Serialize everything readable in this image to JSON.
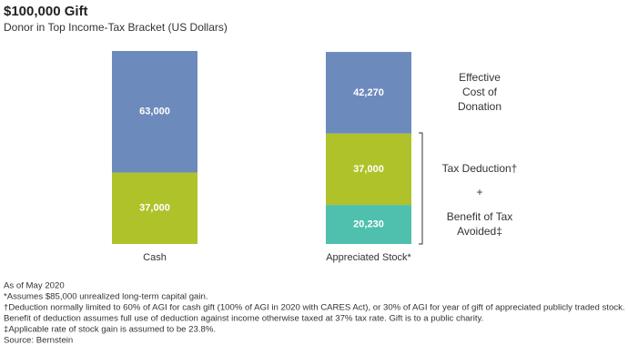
{
  "chart_data": {
    "type": "stacked-bar",
    "title": "$100,000 Gift",
    "subtitle": "Donor in Top Income-Tax Bracket (US Dollars)",
    "categories": [
      "Cash",
      "Appreciated Stock*"
    ],
    "ylim": [
      0,
      100000
    ],
    "series": [
      {
        "name": "Benefit of Tax Avoided‡",
        "color": "#4fbfae",
        "values": [
          null,
          20230
        ],
        "value_labels": [
          null,
          "20,230"
        ]
      },
      {
        "name": "Tax Deduction†",
        "color": "#afc22a",
        "values": [
          37000,
          37000
        ],
        "value_labels": [
          "37,000",
          "37,000"
        ]
      },
      {
        "name": "Effective Cost of Donation",
        "color": "#6d8abd",
        "values": [
          63000,
          42270
        ],
        "value_labels": [
          "63,000",
          "42,270"
        ]
      }
    ],
    "annotation": "+",
    "notes": [
      "As of May 2020",
      "*Assumes $85,000 unrealized long-term capital gain.",
      "†Deduction normally limited to 60% of AGI for cash gift (100% of AGI in 2020 with CARES Act), or 30% of AGI for year of gift of appreciated publicly traded stock.",
      "Benefit of deduction assumes full use of deduction against income otherwise taxed at 37% tax rate. Gift is to a public charity.",
      "‡Applicable rate of stock gain is assumed to be 23.8%.",
      "Source: Bernstein"
    ]
  }
}
